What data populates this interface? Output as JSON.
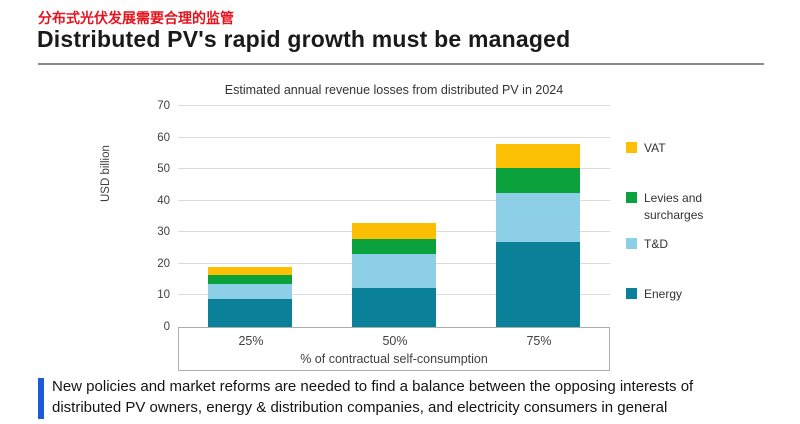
{
  "header": {
    "subtitle_zh": "分布式光伏发展需要合理的监管",
    "title": "Distributed PV's rapid growth must be managed"
  },
  "chart_data": {
    "type": "bar",
    "stacked": true,
    "title": "Estimated annual revenue losses from distributed PV in 2024",
    "xlabel": "% of contractual self-consumption",
    "ylabel": "USD billion",
    "categories": [
      "25%",
      "50%",
      "75%"
    ],
    "series": [
      {
        "name": "Energy",
        "color": "#0A8099",
        "values": [
          9,
          12.5,
          27
        ]
      },
      {
        "name": "T&D",
        "color": "#8DCFE6",
        "values": [
          4.5,
          10.5,
          15.5
        ]
      },
      {
        "name": "Levies and surcharges",
        "color": "#0BA23E",
        "values": [
          3,
          5,
          8
        ]
      },
      {
        "name": "VAT",
        "color": "#FDBF04",
        "values": [
          2.5,
          5,
          7.5
        ]
      }
    ],
    "stack_totals": [
      19,
      33,
      58
    ],
    "ylim": [
      0,
      70
    ],
    "yticks": [
      0,
      10,
      20,
      30,
      40,
      50,
      60,
      70
    ],
    "grid": "horizontal",
    "legend_position": "right",
    "legend_order": [
      "VAT",
      "Levies and surcharges",
      "T&D",
      "Energy"
    ]
  },
  "footer": {
    "accent_color": "#1C5BD8",
    "lines": [
      "New policies and market reforms are needed to find a balance between the opposing interests of",
      "distributed PV owners, energy & distribution companies, and electricity consumers in general"
    ]
  },
  "colors": {
    "heading_red": "#E4141E",
    "divider_gray": "#8C8C8C",
    "gridline_gray": "#DBDBDB"
  }
}
